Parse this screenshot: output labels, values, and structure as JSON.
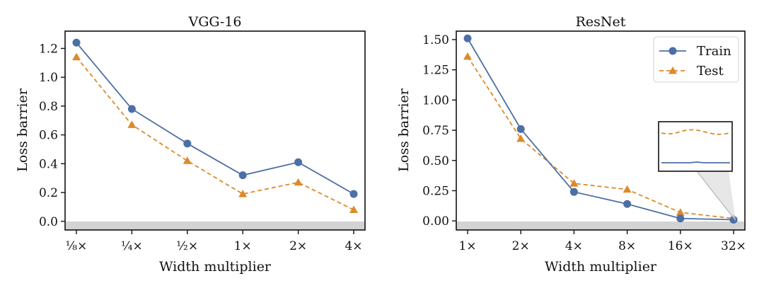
{
  "chart_data": [
    {
      "type": "line",
      "title": "VGG-16",
      "xlabel": "Width multiplier",
      "ylabel": "Loss barrier",
      "categories": [
        "⅛×",
        "¼×",
        "½×",
        "1×",
        "2×",
        "4×"
      ],
      "ylim": [
        -0.06,
        1.32
      ],
      "yticks": [
        "0.0",
        "0.2",
        "0.4",
        "0.6",
        "0.8",
        "1.0",
        "1.2"
      ],
      "ytick_values": [
        0,
        0.2,
        0.4,
        0.6,
        0.8,
        1.0,
        1.2
      ],
      "grid": false,
      "shaded_below_zero": true,
      "series": [
        {
          "name": "Train",
          "values": [
            1.24,
            0.78,
            0.54,
            0.32,
            0.41,
            0.19
          ],
          "color": "#4c6fa6",
          "marker": "circle",
          "dashed": false
        },
        {
          "name": "Test",
          "values": [
            1.14,
            0.67,
            0.42,
            0.19,
            0.27,
            0.08
          ],
          "color": "#dd8a2a",
          "marker": "triangle",
          "dashed": true
        }
      ]
    },
    {
      "type": "line",
      "title": "ResNet",
      "xlabel": "Width multiplier",
      "ylabel": "Loss barrier",
      "categories": [
        "1×",
        "2×",
        "4×",
        "8×",
        "16×",
        "32×"
      ],
      "ylim": [
        -0.075,
        1.57
      ],
      "yticks": [
        "0.00",
        "0.25",
        "0.50",
        "0.75",
        "1.00",
        "1.25",
        "1.50"
      ],
      "ytick_values": [
        0,
        0.25,
        0.5,
        0.75,
        1.0,
        1.25,
        1.5
      ],
      "grid": false,
      "shaded_below_zero": true,
      "legend": "top-right",
      "inset": true,
      "series": [
        {
          "name": "Train",
          "values": [
            1.51,
            0.76,
            0.24,
            0.14,
            0.02,
            0.01
          ],
          "color": "#4c6fa6",
          "marker": "circle",
          "dashed": false
        },
        {
          "name": "Test",
          "values": [
            1.36,
            0.68,
            0.31,
            0.26,
            0.07,
            0.02
          ],
          "color": "#dd8a2a",
          "marker": "triangle",
          "dashed": true
        }
      ]
    }
  ]
}
